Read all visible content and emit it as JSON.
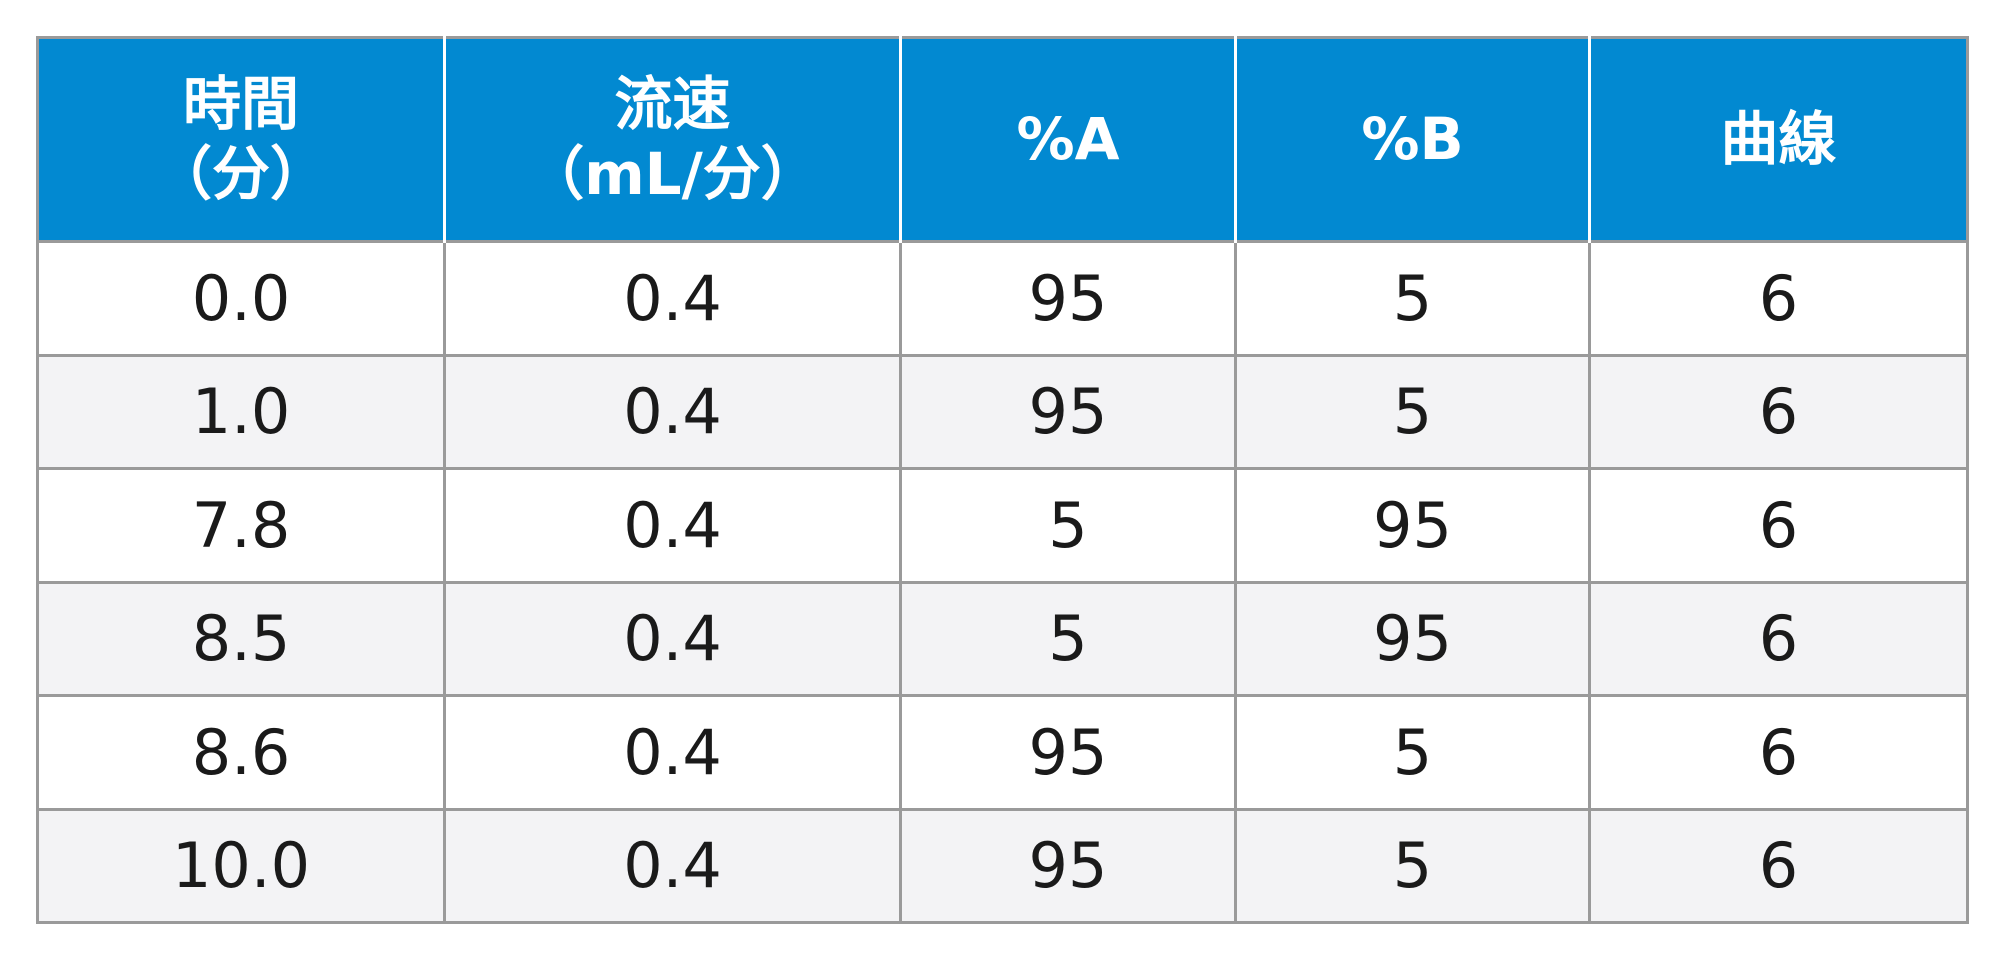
{
  "table": {
    "headers": [
      {
        "line1": "時間",
        "line2": "（分）"
      },
      {
        "line1": "流速",
        "line2": "（mL/分）"
      },
      {
        "line1": "%A",
        "line2": ""
      },
      {
        "line1": "%B",
        "line2": ""
      },
      {
        "line1": "曲線",
        "line2": ""
      }
    ],
    "rows": [
      [
        "0.0",
        "0.4",
        "95",
        "5",
        "6"
      ],
      [
        "1.0",
        "0.4",
        "95",
        "5",
        "6"
      ],
      [
        "7.8",
        "0.4",
        "5",
        "95",
        "6"
      ],
      [
        "8.5",
        "0.4",
        "5",
        "95",
        "6"
      ],
      [
        "8.6",
        "0.4",
        "95",
        "5",
        "6"
      ],
      [
        "10.0",
        "0.4",
        "95",
        "5",
        "6"
      ]
    ]
  },
  "colors": {
    "header_bg": "#0289d1",
    "header_text": "#ffffff",
    "border": "#9a9a9a",
    "row_alt_bg": "#f3f3f5",
    "cell_text": "#1a1a1a"
  }
}
